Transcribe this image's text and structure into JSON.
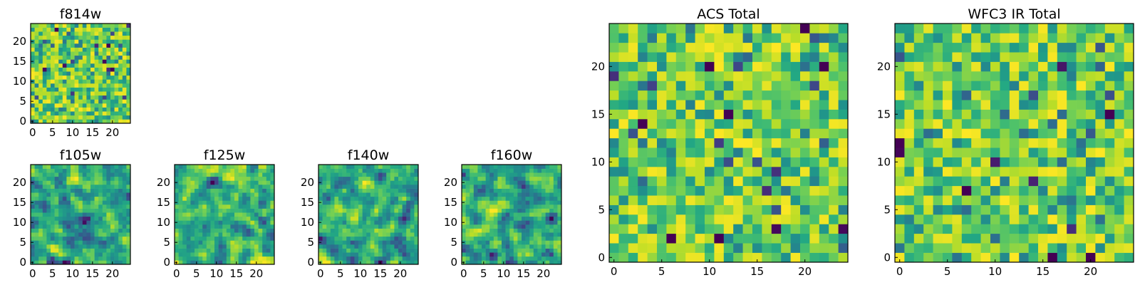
{
  "colors": {
    "colormap": "viridis",
    "background": "#ffffff",
    "axis": "#000000"
  },
  "chart_data": [
    {
      "type": "heatmap",
      "id": "f814w",
      "title": "f814w",
      "grid_size": [
        25,
        25
      ],
      "xticks": [
        0,
        5,
        10,
        15,
        20
      ],
      "yticks": [
        0,
        5,
        10,
        15,
        20
      ],
      "xlim": [
        0,
        25
      ],
      "ylim": [
        0,
        25
      ],
      "pixel_scale": 1,
      "seed": 814,
      "blur": 0,
      "note_values": "per-pixel values not legible; fine-grained random noise field"
    },
    {
      "type": "heatmap",
      "id": "f105w",
      "title": "f105w",
      "grid_size": [
        25,
        25
      ],
      "xticks": [
        0,
        5,
        10,
        15,
        20
      ],
      "yticks": [
        0,
        5,
        10,
        15,
        20
      ],
      "xlim": [
        0,
        25
      ],
      "ylim": [
        0,
        25
      ],
      "pixel_scale": 1,
      "seed": 105,
      "blur": 1
    },
    {
      "type": "heatmap",
      "id": "f125w",
      "title": "f125w",
      "grid_size": [
        25,
        25
      ],
      "xticks": [
        0,
        5,
        10,
        15,
        20
      ],
      "yticks": [
        0,
        5,
        10,
        15,
        20
      ],
      "xlim": [
        0,
        25
      ],
      "ylim": [
        0,
        25
      ],
      "pixel_scale": 1,
      "seed": 125,
      "blur": 1
    },
    {
      "type": "heatmap",
      "id": "f140w",
      "title": "f140w",
      "grid_size": [
        25,
        25
      ],
      "xticks": [
        0,
        5,
        10,
        15,
        20
      ],
      "yticks": [
        0,
        5,
        10,
        15,
        20
      ],
      "xlim": [
        0,
        25
      ],
      "ylim": [
        0,
        25
      ],
      "pixel_scale": 1,
      "seed": 140,
      "blur": 1
    },
    {
      "type": "heatmap",
      "id": "f160w",
      "title": "f160w",
      "grid_size": [
        25,
        25
      ],
      "xticks": [
        0,
        5,
        10,
        15,
        20
      ],
      "yticks": [
        0,
        5,
        10,
        15,
        20
      ],
      "xlim": [
        0,
        25
      ],
      "ylim": [
        0,
        25
      ],
      "pixel_scale": 1,
      "seed": 160,
      "blur": 1
    },
    {
      "type": "heatmap",
      "id": "acs-total",
      "title": "ACS Total",
      "grid_size": [
        25,
        25
      ],
      "xticks": [
        0,
        5,
        10,
        15,
        20
      ],
      "yticks": [
        0,
        5,
        10,
        15,
        20
      ],
      "xlim": [
        0,
        25
      ],
      "ylim": [
        0,
        25
      ],
      "pixel_scale": 1,
      "seed": 7,
      "blur": 0
    },
    {
      "type": "heatmap",
      "id": "wfc3-ir-total",
      "title": "WFC3 IR Total",
      "grid_size": [
        25,
        25
      ],
      "xticks": [
        0,
        5,
        10,
        15,
        20
      ],
      "yticks": [
        0,
        5,
        10,
        15,
        20
      ],
      "xlim": [
        0,
        25
      ],
      "ylim": [
        0,
        25
      ],
      "pixel_scale": 1,
      "seed": 33,
      "blur": 0
    }
  ]
}
